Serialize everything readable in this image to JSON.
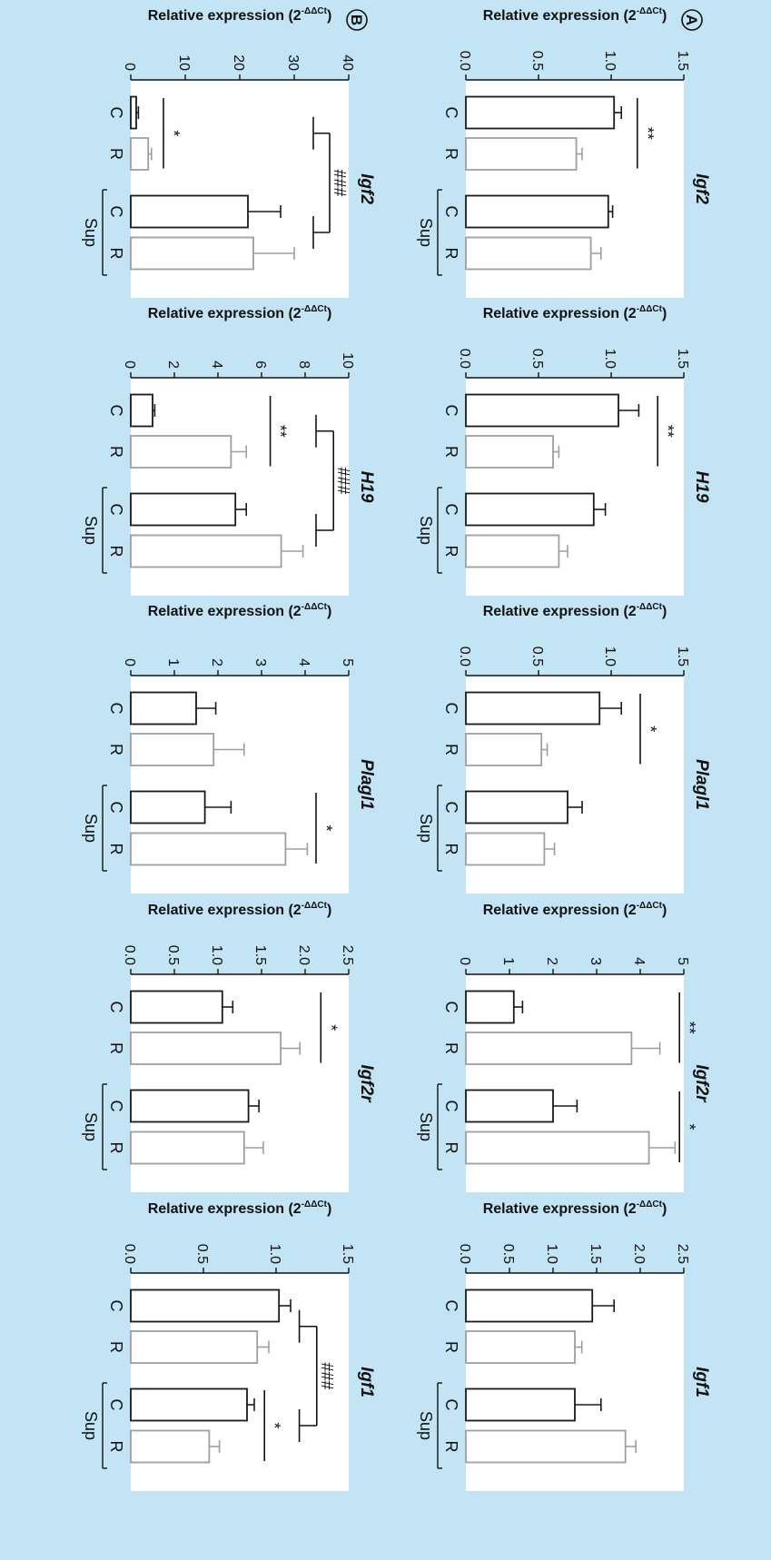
{
  "figure": {
    "background": "#c2e4f5",
    "panel_background": "#ffffff",
    "control_color": "#1a1a1a",
    "restricted_color": "#9e9e9e",
    "panels": [
      {
        "label": "A"
      },
      {
        "label": "B"
      }
    ]
  },
  "chart_data": [
    {
      "panel": "A",
      "type": "bar",
      "title": "Igf2",
      "ylabel": "Relative expression (2-ΔΔCt)",
      "ylim": [
        0,
        1.5
      ],
      "yticks": [
        "0.0",
        "0.5",
        "1.0",
        "1.5"
      ],
      "categories": [
        "C",
        "R",
        "C",
        "R"
      ],
      "group_label": "Sup",
      "values": [
        1.02,
        0.76,
        0.98,
        0.86
      ],
      "errors": [
        0.05,
        0.04,
        0.03,
        0.07
      ],
      "brackets": [
        {
          "from": 0,
          "to": 1,
          "level": 1.18,
          "text": "**"
        }
      ]
    },
    {
      "panel": "A",
      "type": "bar",
      "title": "H19",
      "ylabel": "Relative expression (2-ΔΔCt)",
      "ylim": [
        0,
        1.5
      ],
      "yticks": [
        "0.0",
        "0.5",
        "1.0",
        "1.5"
      ],
      "categories": [
        "C",
        "R",
        "C",
        "R"
      ],
      "group_label": "Sup",
      "values": [
        1.05,
        0.6,
        0.88,
        0.64
      ],
      "errors": [
        0.14,
        0.04,
        0.08,
        0.06
      ],
      "brackets": [
        {
          "from": 0,
          "to": 1,
          "level": 1.32,
          "text": "**"
        }
      ]
    },
    {
      "panel": "A",
      "type": "bar",
      "title": "Plagl1",
      "ylabel": "Relative expression (2-ΔΔCt)",
      "ylim": [
        0,
        1.5
      ],
      "yticks": [
        "0.0",
        "0.5",
        "1.0",
        "1.5"
      ],
      "categories": [
        "C",
        "R",
        "C",
        "R"
      ],
      "group_label": "Sup",
      "values": [
        0.92,
        0.52,
        0.7,
        0.54
      ],
      "errors": [
        0.15,
        0.04,
        0.1,
        0.07
      ],
      "brackets": [
        {
          "from": 0,
          "to": 1,
          "level": 1.2,
          "text": "*"
        }
      ]
    },
    {
      "panel": "A",
      "type": "bar",
      "title": "Igf2r",
      "ylabel": "Relative expression (2-ΔΔCt)",
      "ylim": [
        0,
        5
      ],
      "yticks": [
        "0",
        "1",
        "2",
        "3",
        "4",
        "5"
      ],
      "categories": [
        "C",
        "R",
        "C",
        "R"
      ],
      "group_label": "Sup",
      "values": [
        1.1,
        3.8,
        2.0,
        4.2
      ],
      "errors": [
        0.2,
        0.65,
        0.55,
        0.6
      ],
      "brackets": [
        {
          "from": 0,
          "to": 1,
          "level": 4.9,
          "text": "**"
        },
        {
          "from": 2,
          "to": 3,
          "level": 4.9,
          "text": "*"
        }
      ]
    },
    {
      "panel": "A",
      "type": "bar",
      "title": "Igf1",
      "ylabel": "Relative expression (2-ΔΔCt)",
      "ylim": [
        0,
        2.5
      ],
      "yticks": [
        "0.0",
        "0.5",
        "1.0",
        "1.5",
        "2.0",
        "2.5"
      ],
      "categories": [
        "C",
        "R",
        "C",
        "R"
      ],
      "group_label": "Sup",
      "values": [
        1.45,
        1.25,
        1.25,
        1.83
      ],
      "errors": [
        0.25,
        0.08,
        0.3,
        0.12
      ],
      "brackets": []
    },
    {
      "panel": "B",
      "type": "bar",
      "title": "Igf2",
      "ylabel": "Relative expression (2-ΔΔCt)",
      "ylim": [
        0,
        40
      ],
      "yticks": [
        "0",
        "10",
        "20",
        "30",
        "40"
      ],
      "categories": [
        "C",
        "R",
        "C",
        "R"
      ],
      "group_label": "Sup",
      "values": [
        1.0,
        3.2,
        21.5,
        22.5
      ],
      "errors": [
        0.4,
        0.6,
        6.0,
        7.5
      ],
      "brackets": [
        {
          "from": 0,
          "to": 1,
          "level": 6,
          "text": "*"
        }
      ],
      "group_bracket": {
        "level": 36.5,
        "drop": 33.5,
        "text": "###"
      }
    },
    {
      "panel": "B",
      "type": "bar",
      "title": "H19",
      "ylabel": "Relative expression (2-ΔΔCt)",
      "ylim": [
        0,
        10
      ],
      "yticks": [
        "0",
        "2",
        "4",
        "6",
        "8",
        "10"
      ],
      "categories": [
        "C",
        "R",
        "C",
        "R"
      ],
      "group_label": "Sup",
      "values": [
        1.0,
        4.6,
        4.8,
        6.9
      ],
      "errors": [
        0.1,
        0.7,
        0.5,
        1.0
      ],
      "brackets": [
        {
          "from": 0,
          "to": 1,
          "level": 6.4,
          "text": "**"
        }
      ],
      "group_bracket": {
        "level": 9.3,
        "drop": 8.5,
        "text": "###"
      }
    },
    {
      "panel": "B",
      "type": "bar",
      "title": "Plagl1",
      "ylabel": "Relative expression (2-ΔΔCt)",
      "ylim": [
        0,
        5
      ],
      "yticks": [
        "0",
        "1",
        "2",
        "3",
        "4",
        "5"
      ],
      "categories": [
        "C",
        "R",
        "C",
        "R"
      ],
      "group_label": "Sup",
      "values": [
        1.5,
        1.9,
        1.7,
        3.55
      ],
      "errors": [
        0.45,
        0.7,
        0.6,
        0.5
      ],
      "brackets": [
        {
          "from": 2,
          "to": 3,
          "level": 4.25,
          "text": "*"
        }
      ]
    },
    {
      "panel": "B",
      "type": "bar",
      "title": "Igf2r",
      "ylabel": "Relative expression (2-ΔΔCt)",
      "ylim": [
        0,
        2.5
      ],
      "yticks": [
        "0.0",
        "0.5",
        "1.0",
        "1.5",
        "2.0",
        "2.5"
      ],
      "categories": [
        "C",
        "R",
        "C",
        "R"
      ],
      "group_label": "Sup",
      "values": [
        1.05,
        1.72,
        1.35,
        1.3
      ],
      "errors": [
        0.12,
        0.22,
        0.12,
        0.22
      ],
      "brackets": [
        {
          "from": 0,
          "to": 1,
          "level": 2.18,
          "text": "*"
        }
      ]
    },
    {
      "panel": "B",
      "type": "bar",
      "title": "Igf1",
      "ylabel": "Relative expression (2-ΔΔCt)",
      "ylim": [
        0,
        1.5
      ],
      "yticks": [
        "0.0",
        "0.5",
        "1.0",
        "1.5"
      ],
      "categories": [
        "C",
        "R",
        "C",
        "R"
      ],
      "group_label": "Sup",
      "values": [
        1.02,
        0.87,
        0.8,
        0.54
      ],
      "errors": [
        0.08,
        0.08,
        0.05,
        0.07
      ],
      "brackets": [
        {
          "from": 2,
          "to": 3,
          "level": 0.92,
          "text": "*"
        }
      ],
      "group_bracket": {
        "level": 1.28,
        "drop": 1.16,
        "text": "###"
      }
    }
  ]
}
